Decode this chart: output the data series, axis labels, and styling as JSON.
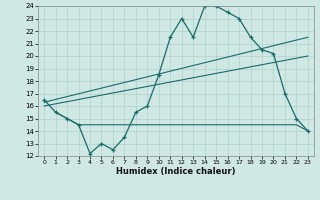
{
  "xlabel": "Humidex (Indice chaleur)",
  "xlim": [
    -0.5,
    23.5
  ],
  "ylim": [
    12,
    24
  ],
  "yticks": [
    12,
    13,
    14,
    15,
    16,
    17,
    18,
    19,
    20,
    21,
    22,
    23,
    24
  ],
  "xticks": [
    0,
    1,
    2,
    3,
    4,
    5,
    6,
    7,
    8,
    9,
    10,
    11,
    12,
    13,
    14,
    15,
    16,
    17,
    18,
    19,
    20,
    21,
    22,
    23
  ],
  "bg_color": "#cfe8e4",
  "line_color": "#1a6b6b",
  "line1_x": [
    0,
    1,
    2,
    3,
    4,
    5,
    6,
    7,
    8,
    9,
    10,
    11,
    12,
    13,
    14,
    15,
    16,
    17,
    18,
    19,
    20,
    21,
    22,
    23
  ],
  "line1_y": [
    16.5,
    15.5,
    15.0,
    14.5,
    12.2,
    13.0,
    12.5,
    13.5,
    15.5,
    16.0,
    18.5,
    21.5,
    23.0,
    21.5,
    24.0,
    24.0,
    23.5,
    23.0,
    21.5,
    20.5,
    20.2,
    17.0,
    15.0,
    14.0
  ],
  "line2_x": [
    0,
    23
  ],
  "line2_y": [
    16.3,
    21.5
  ],
  "line3_x": [
    0,
    23
  ],
  "line3_y": [
    16.0,
    20.0
  ],
  "line4_x": [
    1,
    3,
    4,
    22,
    23
  ],
  "line4_y": [
    15.5,
    14.5,
    14.5,
    14.5,
    14.0
  ]
}
